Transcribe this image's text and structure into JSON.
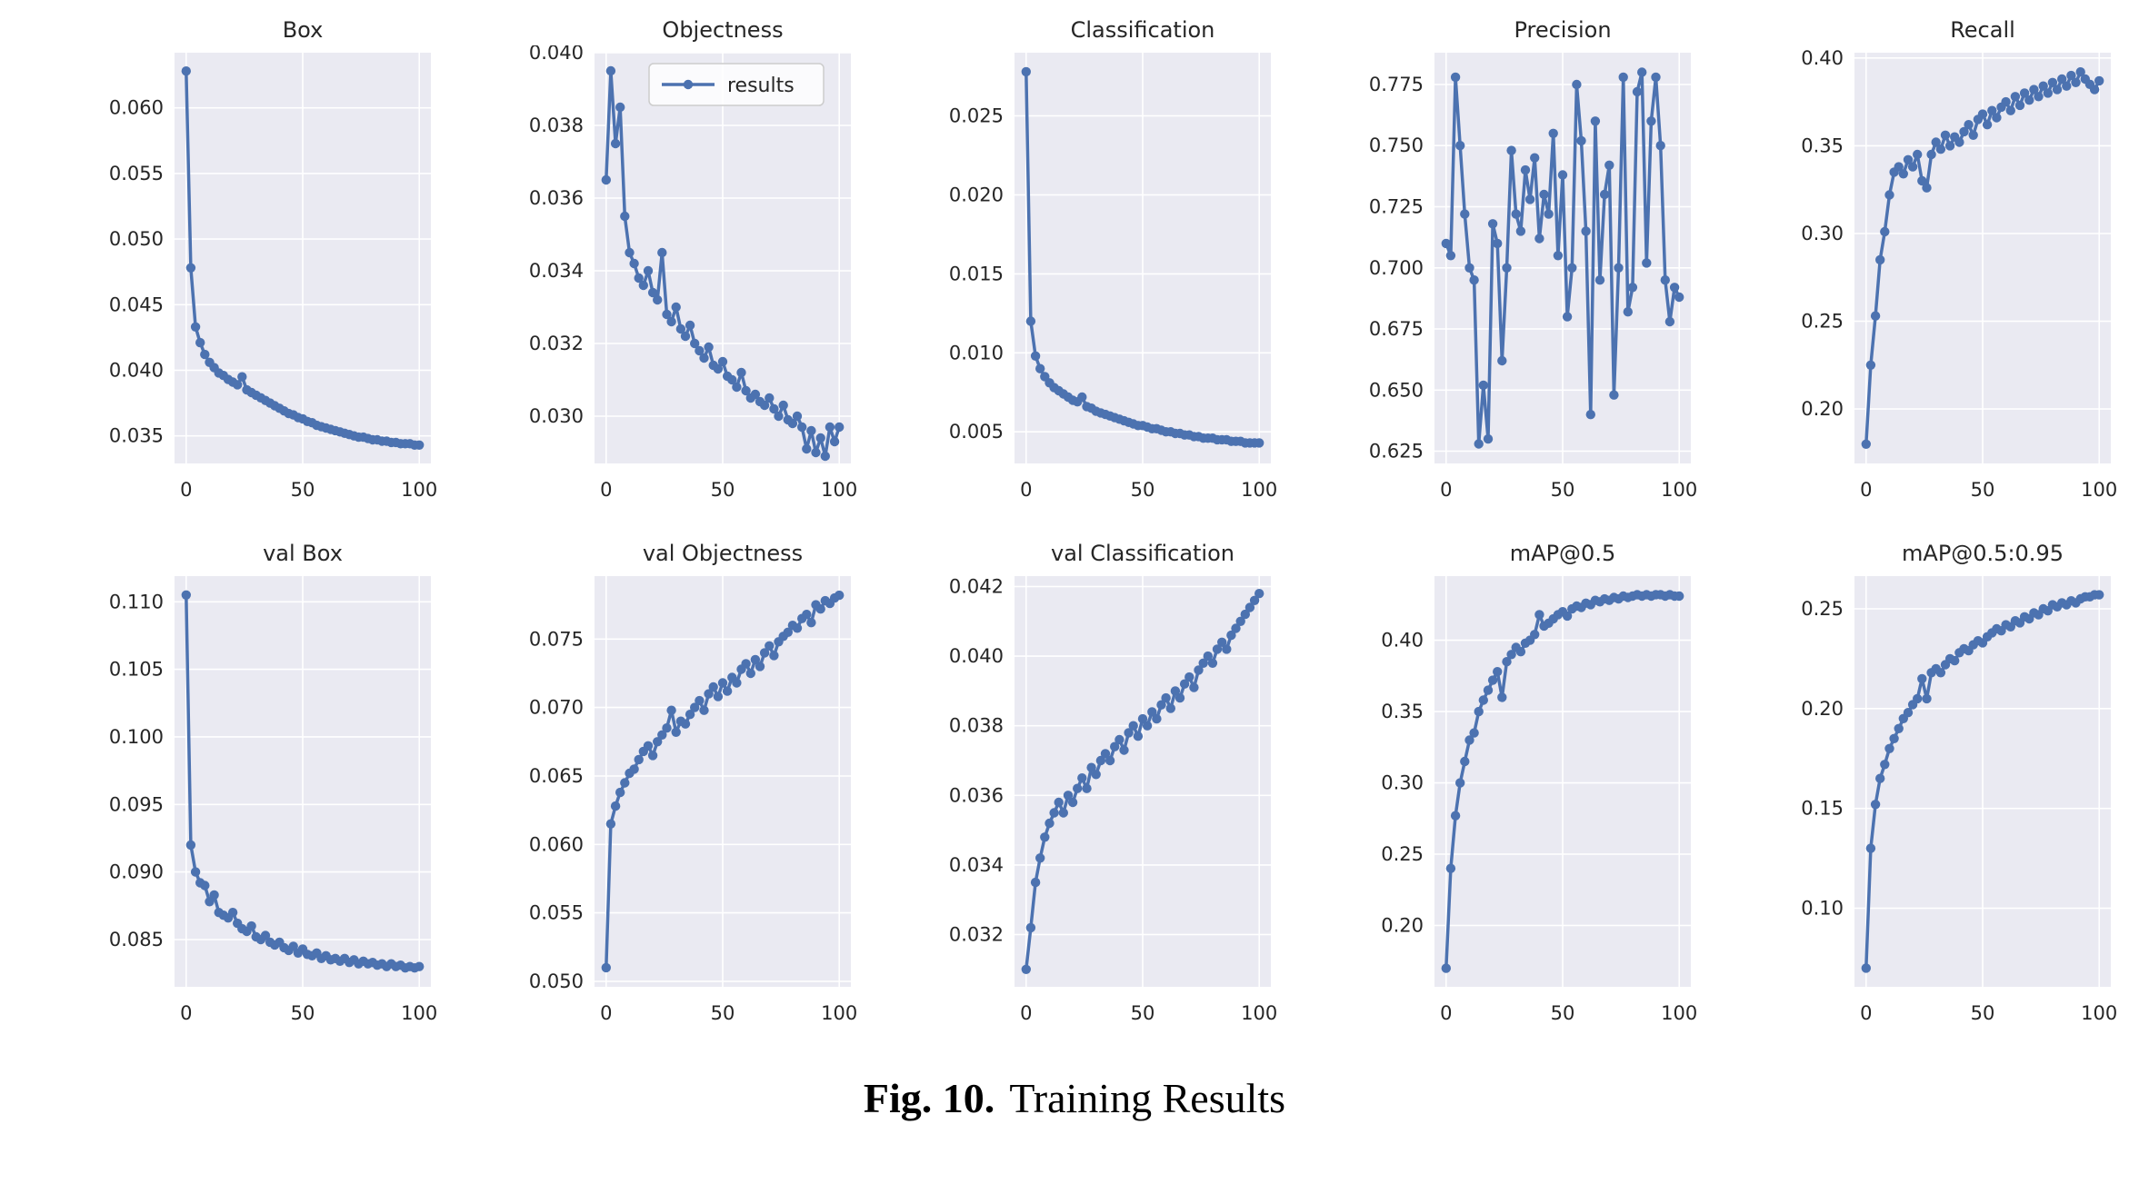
{
  "figure": {
    "caption_prefix": "Fig. 10.",
    "caption_text": "Training Results"
  },
  "style": {
    "line_color": "#4c72b0",
    "axes_bg": "#eaeaf2",
    "grid_color": "#ffffff",
    "tick_color": "#262626",
    "legend_bg": "#ffffff",
    "legend_border": "#cccccc"
  },
  "chart_common": {
    "type": "line",
    "xlim": [
      -5,
      105
    ],
    "x_ticks": [
      0,
      50,
      100
    ],
    "grid": true,
    "x": [
      0,
      2,
      4,
      6,
      8,
      10,
      12,
      14,
      16,
      18,
      20,
      22,
      24,
      26,
      28,
      30,
      32,
      34,
      36,
      38,
      40,
      42,
      44,
      46,
      48,
      50,
      52,
      54,
      56,
      58,
      60,
      62,
      64,
      66,
      68,
      70,
      72,
      74,
      76,
      78,
      80,
      82,
      84,
      86,
      88,
      90,
      92,
      94,
      96,
      98,
      100
    ]
  },
  "chart_data": [
    {
      "type": "line",
      "title": "Box",
      "y_ticks": [
        0.06,
        0.055,
        0.05,
        0.045,
        0.04,
        0.035
      ],
      "y_tick_labels": [
        "0.060",
        "0.055",
        "0.050",
        "0.045",
        "0.040",
        "0.035"
      ],
      "ylim": [
        0.0329,
        0.0642
      ],
      "values": [
        0.0628,
        0.0478,
        0.0433,
        0.0421,
        0.0412,
        0.0406,
        0.0402,
        0.0398,
        0.0396,
        0.0393,
        0.0391,
        0.0389,
        0.0395,
        0.0385,
        0.0383,
        0.0381,
        0.0379,
        0.0377,
        0.0375,
        0.0373,
        0.0371,
        0.0369,
        0.0367,
        0.0366,
        0.0364,
        0.0363,
        0.0361,
        0.036,
        0.0358,
        0.0357,
        0.0356,
        0.0355,
        0.0354,
        0.0353,
        0.0352,
        0.0351,
        0.035,
        0.0349,
        0.0349,
        0.0348,
        0.0347,
        0.0347,
        0.0346,
        0.0346,
        0.0345,
        0.0345,
        0.0344,
        0.0344,
        0.0344,
        0.0343,
        0.0343
      ]
    },
    {
      "type": "line",
      "title": "Objectness",
      "legend_label": "results",
      "y_ticks": [
        0.04,
        0.038,
        0.036,
        0.034,
        0.032,
        0.03
      ],
      "y_tick_labels": [
        "0.040",
        "0.038",
        "0.036",
        "0.034",
        "0.032",
        "0.030"
      ],
      "ylim": [
        0.0287,
        0.04
      ],
      "values": [
        0.0365,
        0.0395,
        0.0375,
        0.0385,
        0.0355,
        0.0345,
        0.0342,
        0.0338,
        0.0336,
        0.034,
        0.0334,
        0.0332,
        0.0345,
        0.0328,
        0.0326,
        0.033,
        0.0324,
        0.0322,
        0.0325,
        0.032,
        0.0318,
        0.0316,
        0.0319,
        0.0314,
        0.0313,
        0.0315,
        0.0311,
        0.031,
        0.0308,
        0.0312,
        0.0307,
        0.0305,
        0.0306,
        0.0304,
        0.0303,
        0.0305,
        0.0302,
        0.03,
        0.0303,
        0.0299,
        0.0298,
        0.03,
        0.0297,
        0.0291,
        0.0296,
        0.029,
        0.0294,
        0.0289,
        0.0297,
        0.0293,
        0.0297
      ]
    },
    {
      "type": "line",
      "title": "Classification",
      "y_ticks": [
        0.025,
        0.02,
        0.015,
        0.01,
        0.005
      ],
      "y_tick_labels": [
        "0.025",
        "0.020",
        "0.015",
        "0.010",
        "0.005"
      ],
      "ylim": [
        0.003,
        0.029
      ],
      "values": [
        0.0278,
        0.012,
        0.0098,
        0.009,
        0.0085,
        0.0081,
        0.0078,
        0.0076,
        0.0074,
        0.0072,
        0.007,
        0.0069,
        0.0072,
        0.0066,
        0.0065,
        0.0063,
        0.0062,
        0.0061,
        0.006,
        0.0059,
        0.0058,
        0.0057,
        0.0056,
        0.0055,
        0.0054,
        0.0054,
        0.0053,
        0.0052,
        0.0052,
        0.0051,
        0.005,
        0.005,
        0.0049,
        0.0049,
        0.0048,
        0.0048,
        0.0047,
        0.0047,
        0.0046,
        0.0046,
        0.0046,
        0.0045,
        0.0045,
        0.0045,
        0.0044,
        0.0044,
        0.0044,
        0.0043,
        0.0043,
        0.0043,
        0.0043
      ]
    },
    {
      "type": "line",
      "title": "Precision",
      "y_ticks": [
        0.775,
        0.75,
        0.725,
        0.7,
        0.675,
        0.65,
        0.625
      ],
      "y_tick_labels": [
        "0.775",
        "0.750",
        "0.725",
        "0.700",
        "0.675",
        "0.650",
        "0.625"
      ],
      "ylim": [
        0.62,
        0.788
      ],
      "values": [
        0.71,
        0.705,
        0.778,
        0.75,
        0.722,
        0.7,
        0.695,
        0.628,
        0.652,
        0.63,
        0.718,
        0.71,
        0.662,
        0.7,
        0.748,
        0.722,
        0.715,
        0.74,
        0.728,
        0.745,
        0.712,
        0.73,
        0.722,
        0.755,
        0.705,
        0.738,
        0.68,
        0.7,
        0.775,
        0.752,
        0.715,
        0.64,
        0.76,
        0.695,
        0.73,
        0.742,
        0.648,
        0.7,
        0.778,
        0.682,
        0.692,
        0.772,
        0.78,
        0.702,
        0.76,
        0.778,
        0.75,
        0.695,
        0.678,
        0.692,
        0.688
      ]
    },
    {
      "type": "line",
      "title": "Recall",
      "y_ticks": [
        0.4,
        0.35,
        0.3,
        0.25,
        0.2
      ],
      "y_tick_labels": [
        "0.40",
        "0.35",
        "0.30",
        "0.25",
        "0.20"
      ],
      "ylim": [
        0.169,
        0.403
      ],
      "values": [
        0.18,
        0.225,
        0.253,
        0.285,
        0.301,
        0.322,
        0.335,
        0.338,
        0.334,
        0.342,
        0.338,
        0.345,
        0.33,
        0.326,
        0.345,
        0.352,
        0.348,
        0.356,
        0.35,
        0.355,
        0.352,
        0.358,
        0.362,
        0.356,
        0.365,
        0.368,
        0.362,
        0.37,
        0.366,
        0.372,
        0.375,
        0.37,
        0.378,
        0.373,
        0.38,
        0.376,
        0.382,
        0.378,
        0.384,
        0.38,
        0.386,
        0.382,
        0.388,
        0.384,
        0.39,
        0.386,
        0.392,
        0.388,
        0.385,
        0.382,
        0.387
      ]
    },
    {
      "type": "line",
      "title": "val Box",
      "y_ticks": [
        0.11,
        0.105,
        0.1,
        0.095,
        0.09,
        0.085
      ],
      "y_tick_labels": [
        "0.110",
        "0.105",
        "0.100",
        "0.095",
        "0.090",
        "0.085"
      ],
      "ylim": [
        0.0815,
        0.1119
      ],
      "values": [
        0.1105,
        0.092,
        0.09,
        0.0892,
        0.089,
        0.0878,
        0.0883,
        0.087,
        0.0868,
        0.0866,
        0.087,
        0.0862,
        0.0858,
        0.0856,
        0.086,
        0.0852,
        0.085,
        0.0853,
        0.0848,
        0.0846,
        0.0848,
        0.0844,
        0.0842,
        0.0845,
        0.084,
        0.0843,
        0.0839,
        0.0838,
        0.084,
        0.0836,
        0.0838,
        0.0835,
        0.0836,
        0.0834,
        0.0836,
        0.0833,
        0.0835,
        0.0832,
        0.0834,
        0.0832,
        0.0833,
        0.0831,
        0.0832,
        0.083,
        0.0832,
        0.083,
        0.0831,
        0.0829,
        0.083,
        0.0829,
        0.083
      ]
    },
    {
      "type": "line",
      "title": "val Objectness",
      "y_ticks": [
        0.075,
        0.07,
        0.065,
        0.06,
        0.055,
        0.05
      ],
      "y_tick_labels": [
        "0.075",
        "0.070",
        "0.065",
        "0.060",
        "0.055",
        "0.050"
      ],
      "ylim": [
        0.0496,
        0.0796
      ],
      "values": [
        0.051,
        0.0615,
        0.0628,
        0.0638,
        0.0645,
        0.0652,
        0.0655,
        0.0662,
        0.0668,
        0.0672,
        0.0665,
        0.0675,
        0.068,
        0.0685,
        0.0698,
        0.0682,
        0.069,
        0.0688,
        0.0695,
        0.07,
        0.0705,
        0.0698,
        0.071,
        0.0715,
        0.0708,
        0.0718,
        0.0712,
        0.0722,
        0.0718,
        0.0728,
        0.0732,
        0.0725,
        0.0735,
        0.073,
        0.074,
        0.0745,
        0.0738,
        0.0748,
        0.0752,
        0.0755,
        0.076,
        0.0758,
        0.0765,
        0.0768,
        0.0762,
        0.0775,
        0.0772,
        0.0778,
        0.0776,
        0.078,
        0.0782
      ]
    },
    {
      "type": "line",
      "title": "val Classification",
      "y_ticks": [
        0.042,
        0.04,
        0.038,
        0.036,
        0.034,
        0.032
      ],
      "y_tick_labels": [
        "0.042",
        "0.040",
        "0.038",
        "0.036",
        "0.034",
        "0.032"
      ],
      "ylim": [
        0.0305,
        0.0423
      ],
      "values": [
        0.031,
        0.0322,
        0.0335,
        0.0342,
        0.0348,
        0.0352,
        0.0355,
        0.0358,
        0.0355,
        0.036,
        0.0358,
        0.0362,
        0.0365,
        0.0362,
        0.0368,
        0.0366,
        0.037,
        0.0372,
        0.037,
        0.0374,
        0.0376,
        0.0373,
        0.0378,
        0.038,
        0.0377,
        0.0382,
        0.038,
        0.0384,
        0.0382,
        0.0386,
        0.0388,
        0.0385,
        0.039,
        0.0388,
        0.0392,
        0.0394,
        0.0391,
        0.0396,
        0.0398,
        0.04,
        0.0398,
        0.0402,
        0.0404,
        0.0402,
        0.0406,
        0.0408,
        0.041,
        0.0412,
        0.0414,
        0.0416,
        0.0418
      ]
    },
    {
      "type": "line",
      "title": "mAP@0.5",
      "y_ticks": [
        0.4,
        0.35,
        0.3,
        0.25,
        0.2
      ],
      "y_tick_labels": [
        "0.40",
        "0.35",
        "0.30",
        "0.25",
        "0.20"
      ],
      "ylim": [
        0.157,
        0.445
      ],
      "values": [
        0.17,
        0.24,
        0.277,
        0.3,
        0.315,
        0.33,
        0.335,
        0.35,
        0.358,
        0.365,
        0.372,
        0.378,
        0.36,
        0.385,
        0.39,
        0.395,
        0.392,
        0.398,
        0.4,
        0.404,
        0.418,
        0.41,
        0.412,
        0.415,
        0.418,
        0.42,
        0.417,
        0.422,
        0.424,
        0.423,
        0.426,
        0.425,
        0.428,
        0.427,
        0.429,
        0.428,
        0.43,
        0.429,
        0.431,
        0.43,
        0.431,
        0.432,
        0.431,
        0.432,
        0.431,
        0.432,
        0.432,
        0.431,
        0.432,
        0.431,
        0.431
      ]
    },
    {
      "type": "line",
      "title": "mAP@0.5:0.95",
      "y_ticks": [
        0.25,
        0.2,
        0.15,
        0.1
      ],
      "y_tick_labels": [
        "0.25",
        "0.20",
        "0.15",
        "0.10"
      ],
      "ylim": [
        0.0606,
        0.2664
      ],
      "values": [
        0.07,
        0.13,
        0.152,
        0.165,
        0.172,
        0.18,
        0.185,
        0.19,
        0.195,
        0.198,
        0.202,
        0.205,
        0.215,
        0.205,
        0.218,
        0.22,
        0.218,
        0.222,
        0.225,
        0.224,
        0.228,
        0.23,
        0.229,
        0.232,
        0.234,
        0.233,
        0.236,
        0.238,
        0.24,
        0.239,
        0.242,
        0.241,
        0.244,
        0.243,
        0.246,
        0.245,
        0.248,
        0.247,
        0.25,
        0.249,
        0.252,
        0.251,
        0.253,
        0.252,
        0.254,
        0.253,
        0.255,
        0.256,
        0.256,
        0.257,
        0.257
      ]
    }
  ]
}
